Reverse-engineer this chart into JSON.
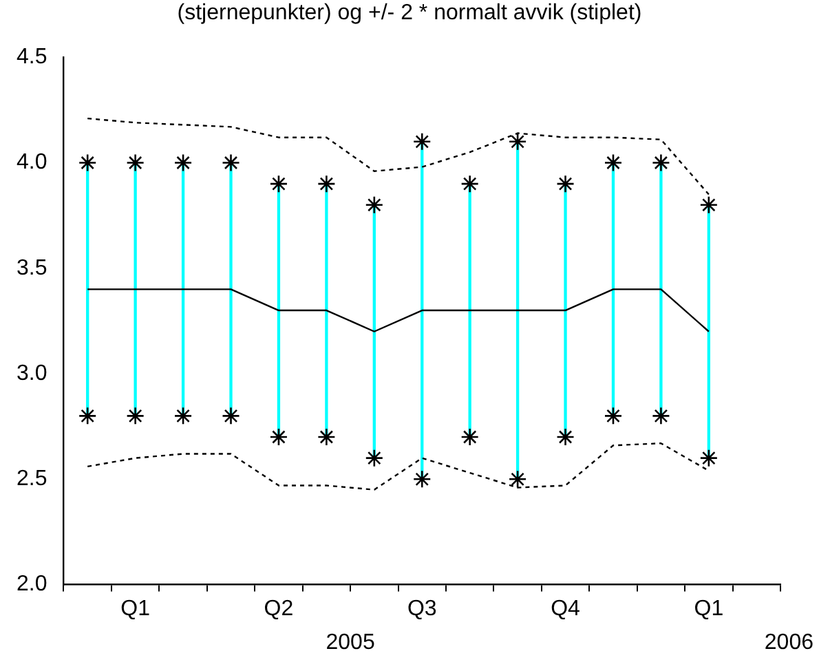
{
  "chart_data": {
    "type": "line",
    "title": "(stjernepunkter) og +/- 2 * normalt avvik (stiplet)",
    "categories": [
      null,
      "Q1",
      null,
      null,
      "Q2",
      null,
      null,
      "Q3",
      null,
      null,
      "Q4",
      null,
      null,
      "Q1",
      null
    ],
    "series": [
      {
        "type": "bar",
        "color": "#00ffff",
        "base": [
          2.8,
          2.8,
          2.8,
          2.8,
          2.7,
          2.7,
          2.6,
          2.5,
          2.7,
          2.5,
          2.7,
          2.8,
          2.8,
          2.6,
          null
        ],
        "values": [
          1.2,
          1.2,
          1.2,
          1.2,
          1.2,
          1.2,
          1.2,
          1.6,
          1.2,
          1.6,
          1.2,
          1.2,
          1.2,
          1.2,
          null
        ]
      },
      {
        "color": "#000000",
        "line_style": "solid",
        "marker": "none",
        "values": [
          3.4,
          3.4,
          3.4,
          3.4,
          3.3,
          3.3,
          3.2,
          3.3,
          3.3,
          3.3,
          3.3,
          3.4,
          3.4,
          3.2,
          null
        ]
      },
      {
        "type": "scatter",
        "color": "#000000",
        "marker": "cross",
        "values": [
          4.0,
          4.0,
          4.0,
          4.0,
          3.9,
          3.9,
          3.8,
          4.1,
          3.9,
          4.1,
          3.9,
          4.0,
          4.0,
          3.8,
          null
        ]
      },
      {
        "type": "scatter",
        "color": "#000000",
        "marker": "cross",
        "values": [
          2.8,
          2.8,
          2.8,
          2.8,
          2.7,
          2.7,
          2.6,
          2.5,
          2.7,
          2.5,
          2.7,
          2.8,
          2.8,
          2.6,
          null
        ]
      },
      {
        "color": "#000000",
        "line_style": "dashed",
        "marker": "none",
        "values": [
          4.21,
          4.19,
          4.18,
          4.17,
          4.12,
          4.12,
          3.96,
          3.98,
          4.05,
          4.14,
          4.12,
          4.12,
          4.11,
          3.85,
          null
        ]
      },
      {
        "color": "#000000",
        "line_style": "dashed",
        "marker": "none",
        "values": [
          2.56,
          2.6,
          2.62,
          2.62,
          2.47,
          2.47,
          2.45,
          2.6,
          2.53,
          2.46,
          2.47,
          2.66,
          2.67,
          2.54,
          null
        ]
      }
    ],
    "ylim": [
      2.0,
      4.5
    ],
    "yticks": [
      {
        "value": 2.0,
        "label": "2.0"
      },
      {
        "value": 2.5,
        "label": "2.5"
      },
      {
        "value": 3.0,
        "label": "3.0"
      },
      {
        "value": 3.5,
        "label": "3.5"
      },
      {
        "value": 4.0,
        "label": "4.0"
      },
      {
        "value": 4.5,
        "label": "4.5"
      }
    ],
    "annotations": [
      "2005",
      "2006"
    ],
    "grid": false,
    "legend": false
  }
}
